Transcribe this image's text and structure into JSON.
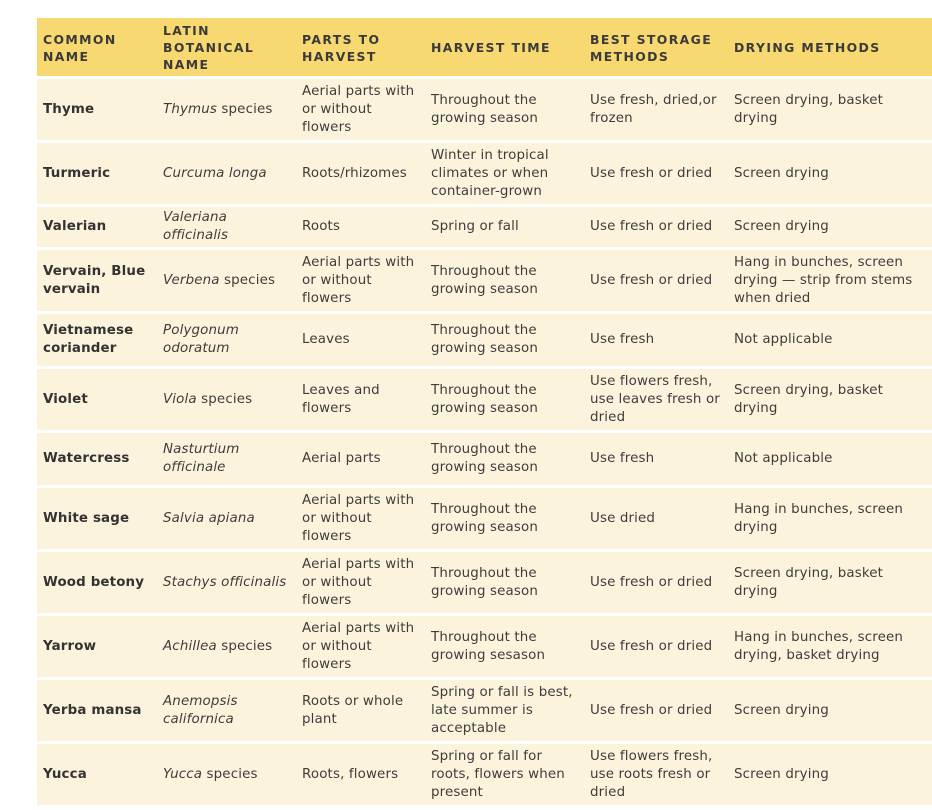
{
  "headers": [
    "COMMON NAME",
    "LATIN BOTANICAL NAME",
    "PARTS TO HARVEST",
    "HARVEST TIME",
    "BEST STORAGE METHODS",
    "DRYING METHODS"
  ],
  "rows": [
    {
      "common": "Thyme",
      "latin_italic": "Thymus",
      "latin_suffix": " species",
      "parts": "Aerial parts with or without flowers",
      "time": "Throughout the growing season",
      "storage": "Use fresh, dried,or frozen",
      "drying": "Screen drying, basket drying"
    },
    {
      "common": "Turmeric",
      "latin_italic": "Curcuma longa",
      "latin_suffix": "",
      "parts": "Roots/rhizomes",
      "time": "Winter in tropical climates or when container-grown",
      "storage": "Use fresh or dried",
      "drying": "Screen drying"
    },
    {
      "common": "Valerian",
      "latin_italic": "Valeriana officinalis",
      "latin_suffix": "",
      "parts": "Roots",
      "time": "Spring or fall",
      "storage": "Use fresh or dried",
      "drying": "Screen drying"
    },
    {
      "common": "Vervain, Blue vervain",
      "latin_italic": "Verbena",
      "latin_suffix": " species",
      "parts": "Aerial parts with or without flowers",
      "time": "Throughout the growing season",
      "storage": "Use fresh or dried",
      "drying": "Hang in bunches, screen drying — strip from stems when dried"
    },
    {
      "common": "Vietnamese coriander",
      "latin_italic": "Polygonum odoratum",
      "latin_suffix": "",
      "parts": "Leaves",
      "time": "Throughout the growing season",
      "storage": "Use fresh",
      "drying": "Not applicable"
    },
    {
      "common": "Violet",
      "latin_italic": "Viola",
      "latin_suffix": " species",
      "parts": "Leaves and flowers",
      "time": "Throughout the growing season",
      "storage": "Use flowers fresh, use leaves fresh or dried",
      "drying": "Screen drying, basket drying"
    },
    {
      "common": "Watercress",
      "latin_italic": "Nasturtium officinale",
      "latin_suffix": "",
      "parts": "Aerial parts",
      "time": "Throughout the growing season",
      "storage": "Use fresh",
      "drying": "Not applicable"
    },
    {
      "common": "White sage",
      "latin_italic": "Salvia apiana",
      "latin_suffix": "",
      "parts": "Aerial parts with or without flowers",
      "time": "Throughout the growing season",
      "storage": "Use dried",
      "drying": "Hang in bunches, screen drying"
    },
    {
      "common": "Wood betony",
      "latin_italic": "Stachys officinalis",
      "latin_suffix": "",
      "parts": "Aerial parts with or without flowers",
      "time": "Throughout the growing season",
      "storage": "Use fresh or dried",
      "drying": "Screen drying, basket drying"
    },
    {
      "common": "Yarrow",
      "latin_italic": "Achillea",
      "latin_suffix": " species",
      "parts": "Aerial parts with or without flowers",
      "time": "Throughout the growing sesason",
      "storage": "Use fresh or dried",
      "drying": "Hang in bunches, screen drying, basket drying"
    },
    {
      "common": "Yerba mansa",
      "latin_italic": "Anemopsis californica",
      "latin_suffix": "",
      "parts": "Roots or whole plant",
      "time": "Spring or fall is best, late summer is acceptable",
      "storage": "Use fresh or dried",
      "drying": "Screen drying"
    },
    {
      "common": "Yucca",
      "latin_italic": "Yucca",
      "latin_suffix": " species",
      "parts": "Roots, flowers",
      "time": "Spring or fall for roots, flowers when present",
      "storage": "Use flowers fresh, use roots fresh or dried",
      "drying": "Screen drying"
    }
  ]
}
